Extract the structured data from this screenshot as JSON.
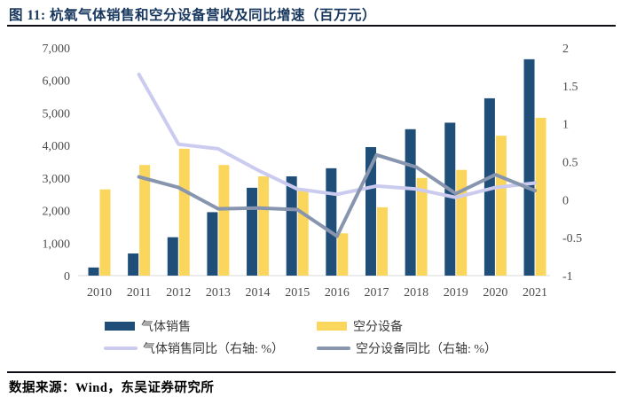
{
  "title": "图 11:  杭氧气体销售和空分设备营收及同比增速（百万元）",
  "source": "数据来源：Wind，东吴证券研究所",
  "colors": {
    "title_navy": "#17365D",
    "rule": "#0d0d15",
    "bar_blue": "#1F4E79",
    "bar_yellow": "#FBD65C",
    "line_lavender": "#CBCBF0",
    "line_gray": "#8795AE",
    "tick_text": "#4d4d4d",
    "axis_line": "#D9D9D9"
  },
  "chart_data": {
    "type": "bar",
    "subtype": "grouped bars with two YoY lines on secondary axis",
    "categories": [
      "2010",
      "2011",
      "2012",
      "2013",
      "2014",
      "2015",
      "2016",
      "2017",
      "2018",
      "2019",
      "2020",
      "2021"
    ],
    "bar_series": [
      {
        "id": "gas-sales",
        "name": "气体销售",
        "color": "#1F4E79",
        "values": [
          250,
          680,
          1180,
          1950,
          2700,
          3050,
          3300,
          3950,
          4500,
          4700,
          5450,
          6650
        ]
      },
      {
        "id": "air-separation",
        "name": "空分设备",
        "color": "#FBD65C",
        "values": [
          2650,
          3400,
          3900,
          3400,
          3050,
          2600,
          1300,
          2100,
          3000,
          3250,
          4300,
          4850
        ]
      }
    ],
    "line_series": [
      {
        "id": "gas-sales-yoy",
        "name": "气体销售同比（右轴: %）",
        "color": "#CBCBF0",
        "axis": "right",
        "values": [
          null,
          1.65,
          0.73,
          0.67,
          0.39,
          0.14,
          0.07,
          0.18,
          0.14,
          0.03,
          0.16,
          0.22
        ]
      },
      {
        "id": "air-separation-yoy",
        "name": "空分设备同比（右轴: %）",
        "color": "#8795AE",
        "axis": "right",
        "values": [
          null,
          0.3,
          0.16,
          -0.12,
          -0.11,
          -0.13,
          -0.48,
          0.59,
          0.43,
          0.08,
          0.33,
          0.12
        ]
      }
    ],
    "left_axis": {
      "min": 0,
      "max": 7000,
      "ticks": [
        {
          "label": "7,000",
          "value": 7000
        },
        {
          "label": "6,000",
          "value": 6000
        },
        {
          "label": "5,000",
          "value": 5000
        },
        {
          "label": "4,000",
          "value": 4000
        },
        {
          "label": "3,000",
          "value": 3000
        },
        {
          "label": "2,000",
          "value": 2000
        },
        {
          "label": "1,000",
          "value": 1000
        },
        {
          "label": "0",
          "value": 0
        }
      ]
    },
    "right_axis": {
      "min": -1,
      "max": 2,
      "ticks": [
        {
          "label": "2",
          "value": 2
        },
        {
          "label": "1.5",
          "value": 1.5
        },
        {
          "label": "1",
          "value": 1
        },
        {
          "label": "0.5",
          "value": 0.5
        },
        {
          "label": "0",
          "value": 0
        },
        {
          "label": "-0.5",
          "value": -0.5
        },
        {
          "label": "-1",
          "value": -1
        }
      ]
    },
    "grid": "off",
    "legend_position": "bottom"
  }
}
